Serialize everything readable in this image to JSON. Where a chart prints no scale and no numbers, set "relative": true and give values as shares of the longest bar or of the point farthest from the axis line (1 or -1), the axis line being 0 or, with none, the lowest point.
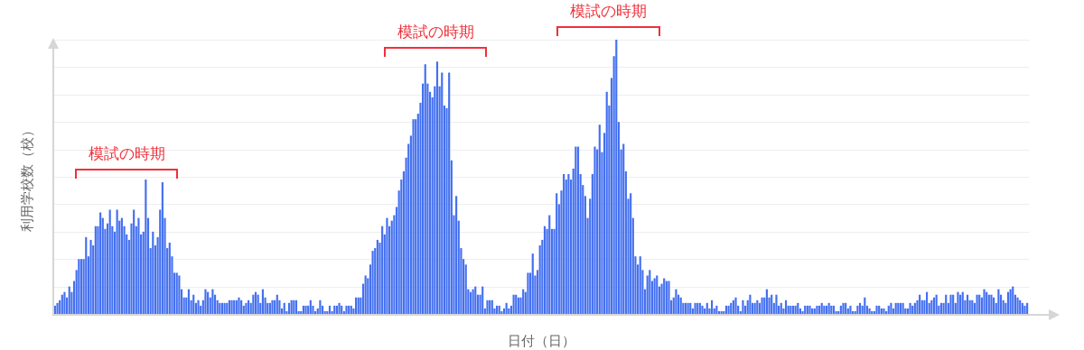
{
  "chart_data": {
    "type": "bar",
    "relative": true,
    "xlabel": "日付（日）",
    "ylabel": "利用学校数（校）",
    "color": "#4470f0",
    "grid": "y",
    "tick_labels": false,
    "annotations": [
      "模試の時期",
      "模試の時期",
      "模試の時期"
    ],
    "categories": [
      null,
      null,
      null,
      null,
      null,
      null,
      null,
      null,
      null,
      null,
      null,
      null,
      null,
      null,
      null,
      null,
      null,
      null,
      null,
      null,
      null,
      null,
      null,
      null,
      null,
      null,
      null,
      null,
      null,
      null,
      null,
      null,
      null,
      null,
      null,
      null,
      null,
      null,
      null,
      null,
      null,
      null,
      null,
      null,
      null,
      null,
      null,
      null,
      null,
      null,
      null,
      null,
      null,
      null,
      null,
      null,
      null,
      null,
      null,
      null,
      null,
      null,
      null,
      null,
      null,
      null,
      null,
      null,
      null,
      null,
      null,
      null,
      null,
      null,
      null,
      null,
      null,
      null,
      null,
      null,
      null,
      null,
      null,
      null,
      null,
      null,
      null,
      null,
      null,
      null,
      null,
      null,
      null,
      null,
      null,
      null,
      null,
      null,
      null,
      null,
      null,
      null,
      null,
      null,
      null,
      null,
      null,
      null,
      null,
      null,
      null,
      null,
      null,
      null,
      null,
      null,
      null,
      null,
      null,
      null,
      null,
      null,
      null,
      null,
      null,
      null,
      null,
      null,
      null,
      null,
      null,
      null,
      null,
      null,
      null,
      null,
      null,
      null,
      null,
      null,
      null,
      null,
      null,
      null,
      null,
      null,
      null,
      null,
      null,
      null,
      null,
      null,
      null,
      null,
      null,
      null,
      null,
      null,
      null,
      null,
      null,
      null,
      null,
      null,
      null,
      null,
      null,
      null,
      null,
      null,
      null,
      null,
      null,
      null,
      null,
      null,
      null,
      null,
      null,
      null,
      null,
      null,
      null,
      null,
      null,
      null,
      null,
      null,
      null,
      null,
      null,
      null,
      null,
      null,
      null,
      null,
      null,
      null,
      null,
      null,
      null,
      null,
      null,
      null,
      null,
      null,
      null,
      null,
      null,
      null,
      null,
      null,
      null,
      null,
      null,
      null,
      null,
      null,
      null,
      null,
      null,
      null,
      null,
      null,
      null,
      null,
      null,
      null,
      null,
      null,
      null,
      null,
      null,
      null,
      null,
      null,
      null,
      null,
      null,
      null,
      null,
      null,
      null,
      null,
      null,
      null,
      null,
      null,
      null,
      null,
      null,
      null,
      null,
      null,
      null,
      null,
      null,
      null,
      null,
      null,
      null,
      null,
      null,
      null,
      null,
      null,
      null,
      null,
      null,
      null,
      null,
      null,
      null,
      null,
      null,
      null,
      null,
      null,
      null,
      null,
      null,
      null,
      null,
      null,
      null,
      null,
      null,
      null,
      null,
      null,
      null,
      null,
      null,
      null,
      null,
      null,
      null,
      null,
      null,
      null,
      null,
      null,
      null,
      null,
      null,
      null,
      null,
      null,
      null,
      null,
      null,
      null,
      null,
      null,
      null,
      null,
      null,
      null,
      null,
      null,
      null,
      null,
      null,
      null,
      null,
      null,
      null,
      null,
      null,
      null,
      null,
      null,
      null,
      null,
      null,
      null,
      null,
      null,
      null,
      null,
      null,
      null,
      null,
      null,
      null,
      null,
      null,
      null,
      null,
      null,
      null,
      null,
      null,
      null,
      null,
      null,
      null,
      null,
      null,
      null,
      null,
      null,
      null,
      null,
      null,
      null,
      null,
      null,
      null,
      null,
      null,
      null,
      null,
      null,
      null,
      null,
      null,
      null,
      null,
      null,
      null,
      null,
      null,
      null,
      null,
      null,
      null,
      null,
      null,
      null,
      null,
      null,
      null,
      null,
      null,
      null,
      null,
      null,
      null,
      null,
      null,
      null,
      null,
      null,
      null,
      null,
      null,
      null
    ],
    "values": [
      0.03,
      0.04,
      0.05,
      0.07,
      0.08,
      0.06,
      0.1,
      0.08,
      0.12,
      0.16,
      0.2,
      0.2,
      0.2,
      0.28,
      0.21,
      0.27,
      0.25,
      0.32,
      0.32,
      0.37,
      0.35,
      0.31,
      0.33,
      0.38,
      0.32,
      0.3,
      0.38,
      0.34,
      0.35,
      0.32,
      0.29,
      0.27,
      0.33,
      0.38,
      0.32,
      0.35,
      0.29,
      0.3,
      0.49,
      0.35,
      0.24,
      0.3,
      0.25,
      0.28,
      0.38,
      0.48,
      0.35,
      0.24,
      0.26,
      0.21,
      0.15,
      0.15,
      0.14,
      0.09,
      0.06,
      0.06,
      0.09,
      0.05,
      0.07,
      0.04,
      0.05,
      0.03,
      0.05,
      0.09,
      0.08,
      0.06,
      0.09,
      0.07,
      0.05,
      0.04,
      0.04,
      0.04,
      0.04,
      0.05,
      0.05,
      0.05,
      0.05,
      0.06,
      0.05,
      0.03,
      0.04,
      0.05,
      0.04,
      0.07,
      0.08,
      0.07,
      0.04,
      0.09,
      0.06,
      0.04,
      0.04,
      0.05,
      0.05,
      0.07,
      0.05,
      0.02,
      0.04,
      0.01,
      0.04,
      0.05,
      0.05,
      0.05,
      0.01,
      0.01,
      0.03,
      0.03,
      0.03,
      0.05,
      0.03,
      0.01,
      0.02,
      0.05,
      0.03,
      0.01,
      0.01,
      0.03,
      0.01,
      0.03,
      0.03,
      0.04,
      0.03,
      0.01,
      0.03,
      0.03,
      0.03,
      0.02,
      0.06,
      0.06,
      0.06,
      0.11,
      0.14,
      0.13,
      0.18,
      0.23,
      0.24,
      0.27,
      0.26,
      0.32,
      0.29,
      0.35,
      0.32,
      0.34,
      0.36,
      0.39,
      0.45,
      0.49,
      0.52,
      0.57,
      0.62,
      0.65,
      0.71,
      0.71,
      0.73,
      0.77,
      0.84,
      0.91,
      0.84,
      0.81,
      0.79,
      0.83,
      0.92,
      0.83,
      0.88,
      0.76,
      0.75,
      0.88,
      0.56,
      0.36,
      0.43,
      0.34,
      0.24,
      0.2,
      0.18,
      0.09,
      0.08,
      0.09,
      0.1,
      0.07,
      0.07,
      0.1,
      0.02,
      0.05,
      0.05,
      0.05,
      0.02,
      0.03,
      0.03,
      0.01,
      0.02,
      0.04,
      0.02,
      0.03,
      0.07,
      0.07,
      0.06,
      0.06,
      0.09,
      0.08,
      0.15,
      0.15,
      0.22,
      0.14,
      0.16,
      0.25,
      0.27,
      0.32,
      0.31,
      0.36,
      0.31,
      0.31,
      0.44,
      0.4,
      0.45,
      0.51,
      0.49,
      0.51,
      0.49,
      0.53,
      0.61,
      0.61,
      0.51,
      0.47,
      0.43,
      0.35,
      0.42,
      0.51,
      0.61,
      0.6,
      0.69,
      0.59,
      0.66,
      0.81,
      0.76,
      0.86,
      0.94,
      1,
      0.7,
      0.6,
      0.62,
      0.52,
      0.42,
      0.44,
      0.35,
      0.21,
      0.18,
      0.21,
      0.16,
      0.09,
      0.14,
      0.16,
      0.12,
      0.13,
      0.14,
      0.1,
      0.11,
      0.13,
      0.12,
      0.12,
      0.05,
      0.06,
      0.09,
      0.07,
      0.06,
      0.04,
      0.04,
      0.04,
      0.04,
      0.02,
      0.04,
      0.04,
      0.04,
      0.03,
      0.02,
      0.04,
      0.02,
      0.05,
      0.02,
      0.03,
      0.01,
      0.01,
      0.01,
      0.03,
      0.03,
      0.04,
      0.05,
      0.06,
      0.03,
      0.01,
      0.05,
      0.03,
      0.05,
      0.07,
      0.04,
      0.04,
      0.05,
      0.04,
      0.06,
      0.06,
      0.09,
      0.06,
      0.07,
      0.04,
      0.07,
      0.03,
      0.04,
      0.02,
      0.05,
      0.03,
      0.03,
      0.03,
      0.03,
      0.04,
      0.02,
      0.01,
      0.03,
      0.03,
      0.03,
      0.02,
      0.02,
      0.03,
      0.03,
      0.04,
      0.03,
      0.03,
      0.04,
      0.03,
      0.03,
      0.01,
      0.01,
      0.03,
      0.04,
      0.04,
      0.02,
      0.03,
      0.01,
      0.01,
      0.03,
      0.04,
      0.03,
      0.06,
      0.03,
      0.02,
      0.01,
      0.01,
      0.03,
      0.03,
      0.02,
      0.02,
      0.01,
      0.03,
      0.04,
      0.02,
      0.04,
      0.04,
      0.04,
      0.04,
      0.02,
      0.02,
      0.04,
      0.03,
      0.04,
      0.05,
      0.07,
      0.05,
      0.05,
      0.08,
      0.04,
      0.05,
      0.06,
      0.07,
      0.03,
      0.04,
      0.04,
      0.07,
      0.04,
      0.07,
      0.07,
      0.04,
      0.08,
      0.07,
      0.08,
      0.05,
      0.07,
      0.05,
      0.05,
      0.04,
      0.07,
      0.07,
      0.06,
      0.09,
      0.08,
      0.07,
      0.07,
      0.06,
      0.04,
      0.09,
      0.07,
      0.05,
      0.04,
      0.08,
      0.09,
      0.1,
      0.07,
      0.06,
      0.05,
      0.04,
      0.03,
      0.04
    ]
  }
}
